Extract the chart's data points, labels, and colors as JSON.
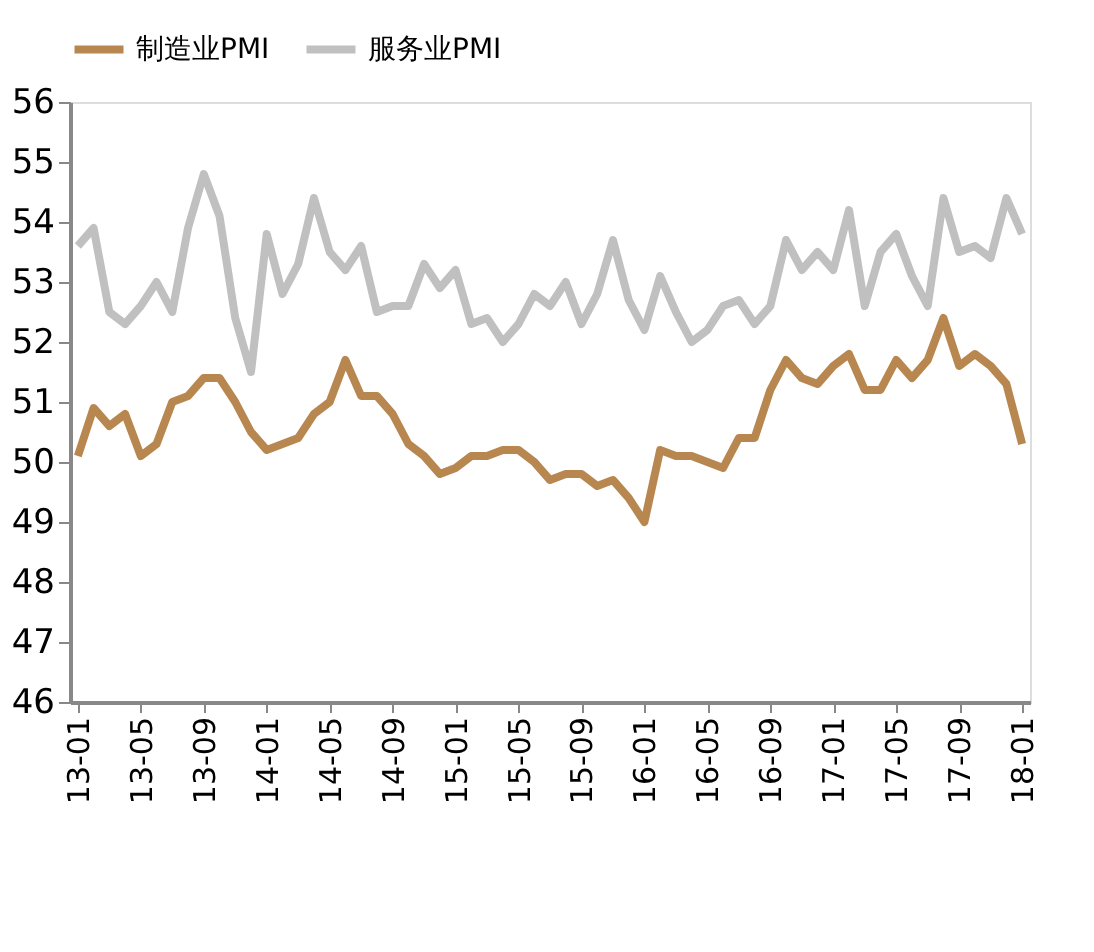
{
  "chart_data": {
    "type": "line",
    "categories": [
      "13-01",
      null,
      null,
      null,
      "13-05",
      null,
      null,
      null,
      "13-09",
      null,
      null,
      null,
      "14-01",
      null,
      null,
      null,
      "14-05",
      null,
      null,
      null,
      "14-09",
      null,
      null,
      null,
      "15-01",
      null,
      null,
      null,
      "15-05",
      null,
      null,
      null,
      "15-09",
      null,
      null,
      null,
      "16-01",
      null,
      null,
      null,
      "16-05",
      null,
      null,
      null,
      "16-09",
      null,
      null,
      null,
      "17-01",
      null,
      null,
      null,
      "17-05",
      null,
      null,
      null,
      "17-09",
      null,
      null,
      null,
      "18-01"
    ],
    "series": [
      {
        "name": "制造业PMI",
        "color": "#b8874f",
        "values": [
          50.1,
          50.9,
          50.6,
          50.8,
          50.1,
          50.3,
          51.0,
          51.1,
          51.4,
          51.4,
          51.0,
          50.5,
          50.2,
          50.3,
          50.4,
          50.8,
          51.0,
          51.7,
          51.1,
          51.1,
          50.8,
          50.3,
          50.1,
          49.8,
          49.9,
          50.1,
          50.1,
          50.2,
          50.2,
          50.0,
          49.7,
          49.8,
          49.8,
          49.6,
          49.7,
          49.4,
          49.0,
          50.2,
          50.1,
          50.1,
          50.0,
          49.9,
          50.4,
          50.4,
          51.2,
          51.7,
          51.4,
          51.3,
          51.6,
          51.8,
          51.2,
          51.2,
          51.7,
          51.4,
          51.7,
          52.4,
          51.6,
          51.8,
          51.6,
          51.3,
          50.3
        ]
      },
      {
        "name": "服务业PMI",
        "color": "#c0c0c0",
        "values": [
          53.6,
          53.9,
          52.5,
          52.3,
          52.6,
          53.0,
          52.5,
          53.9,
          54.8,
          54.1,
          52.4,
          51.5,
          53.8,
          52.8,
          53.3,
          54.4,
          53.5,
          53.2,
          53.6,
          52.5,
          52.6,
          52.6,
          53.3,
          52.9,
          53.2,
          52.3,
          52.4,
          52.0,
          52.3,
          52.8,
          52.6,
          53.0,
          52.3,
          52.8,
          53.7,
          52.7,
          52.2,
          53.1,
          52.5,
          52.0,
          52.2,
          52.6,
          52.7,
          52.3,
          52.6,
          53.7,
          53.2,
          53.5,
          53.2,
          54.2,
          52.6,
          53.5,
          53.8,
          53.1,
          52.6,
          54.4,
          53.5,
          53.6,
          53.4,
          54.4,
          53.8
        ]
      }
    ],
    "ylim": [
      46,
      56
    ],
    "yticks": [
      46,
      47,
      48,
      49,
      50,
      51,
      52,
      53,
      54,
      55,
      56
    ],
    "grid": false,
    "legend": "top",
    "marker": "none",
    "line_style": "solid"
  }
}
